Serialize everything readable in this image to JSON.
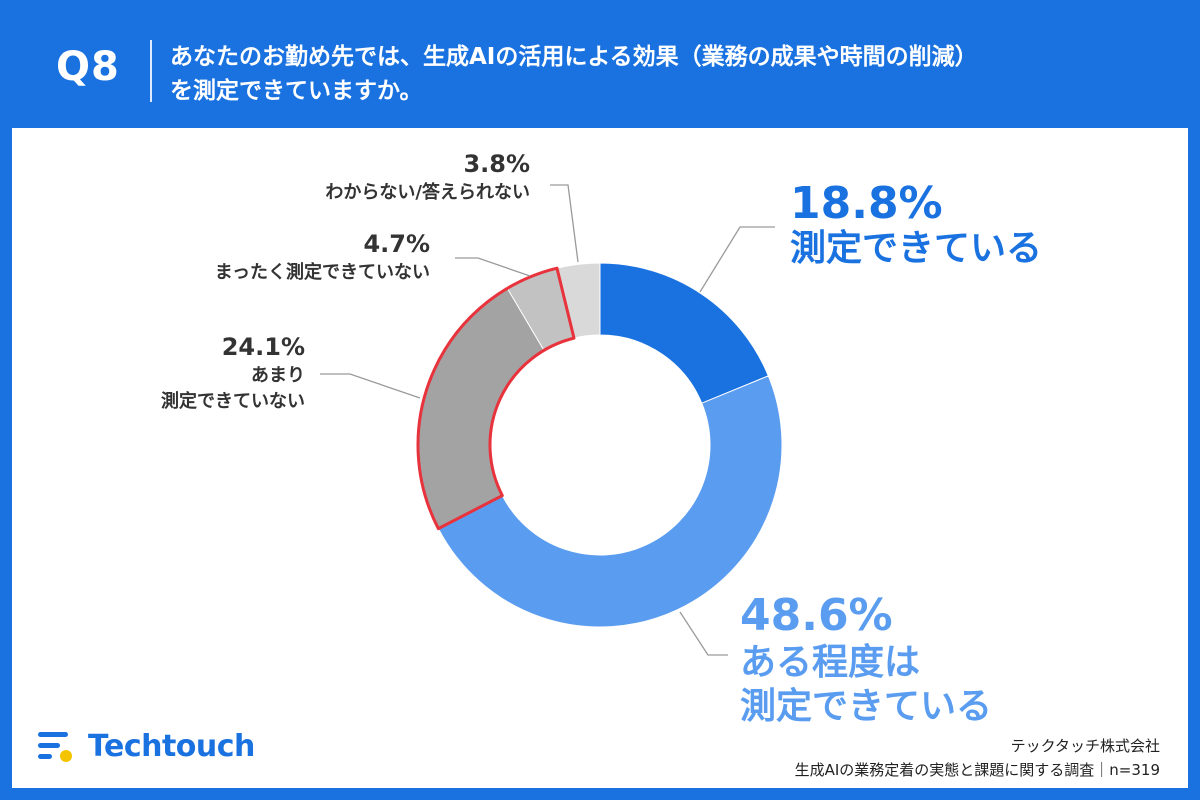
{
  "header": {
    "question_number": "Q8",
    "question_line1": "あなたのお勤め先では、生成AIの活用による効果（業務の成果や時間の削減）",
    "question_line2": "を測定できていますか。"
  },
  "chart_data": {
    "type": "pie",
    "donut": true,
    "slices": [
      {
        "label_lines": [
          "測定できている"
        ],
        "value": 18.8,
        "value_label": "18.8%",
        "color": "#1a72e0",
        "label_color": "#1a72e0"
      },
      {
        "label_lines": [
          "ある程度は",
          "測定できている"
        ],
        "value": 48.6,
        "value_label": "48.6%",
        "color": "#5a9df0",
        "label_color": "#5a9df0"
      },
      {
        "label_lines": [
          "あまり",
          "測定できていない"
        ],
        "value": 24.1,
        "value_label": "24.1%",
        "color": "#a3a3a3",
        "label_color": "#333333"
      },
      {
        "label_lines": [
          "まったく測定できていない"
        ],
        "value": 4.7,
        "value_label": "4.7%",
        "color": "#c2c2c2",
        "label_color": "#333333"
      },
      {
        "label_lines": [
          "わからない/答えられない"
        ],
        "value": 3.8,
        "value_label": "3.8%",
        "color": "#d9d9d9",
        "label_color": "#333333"
      }
    ],
    "highlight_color": "#e8323c",
    "highlighted_slices": [
      2,
      3
    ]
  },
  "footer": {
    "logo_text": "Techtouch",
    "company": "テックタッチ株式会社",
    "survey": "生成AIの業務定着の実態と課題に関する調査｜n=319"
  }
}
